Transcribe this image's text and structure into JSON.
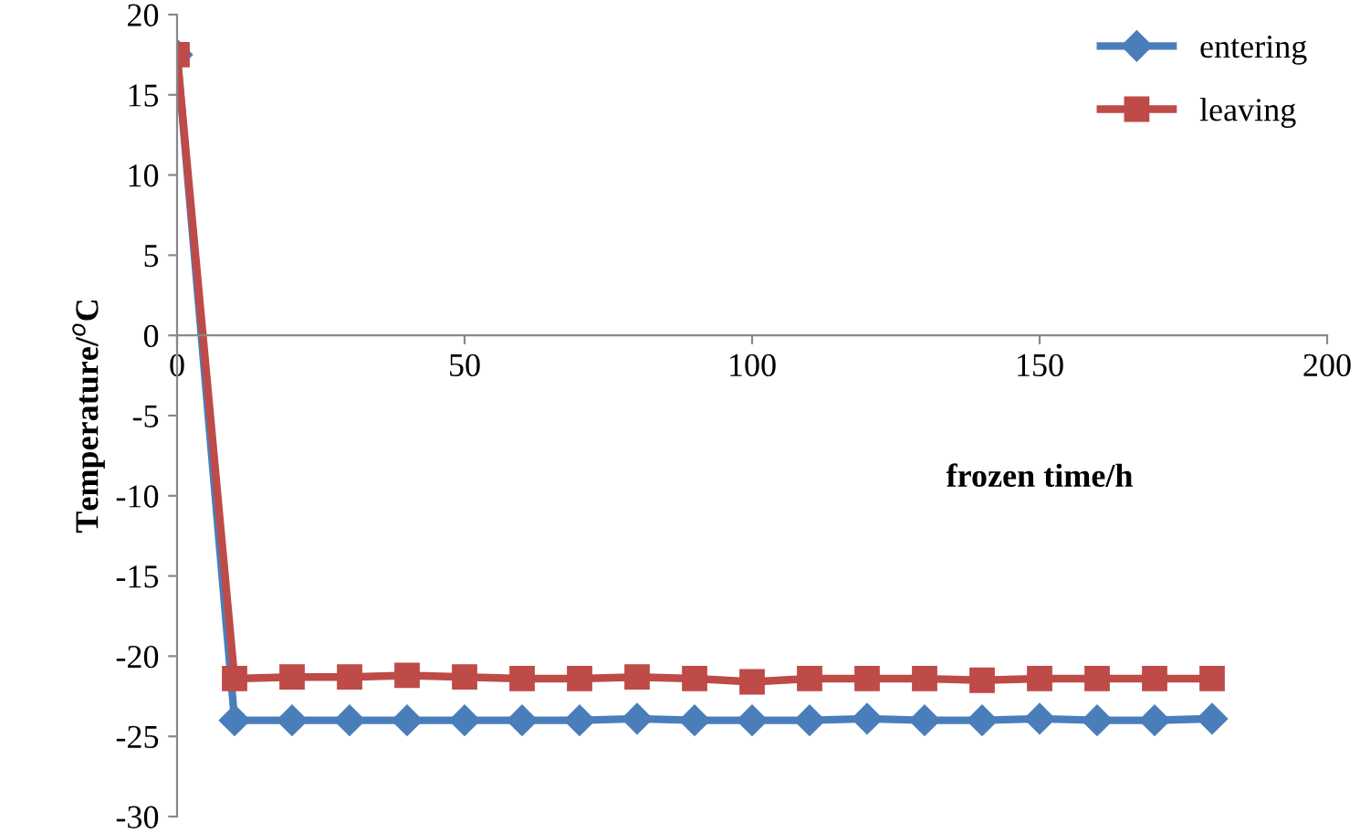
{
  "chart_data": {
    "type": "line",
    "xlabel": "frozen time/h",
    "ylabel": "Temperature/$^{o}$C",
    "x": [
      0,
      10,
      20,
      30,
      40,
      50,
      60,
      70,
      80,
      90,
      100,
      110,
      120,
      130,
      140,
      150,
      160,
      170,
      180
    ],
    "series": [
      {
        "name": "entering",
        "color": "#4a7ebb",
        "marker": "diamond",
        "values": [
          17.5,
          -24,
          -24,
          -24,
          -24,
          -24,
          -24,
          -24,
          -23.9,
          -24,
          -24,
          -24,
          -23.9,
          -24,
          -24,
          -23.9,
          -24,
          -24,
          -23.9
        ]
      },
      {
        "name": "leaving",
        "color": "#be4b48",
        "marker": "square",
        "values": [
          17.5,
          -21.4,
          -21.3,
          -21.3,
          -21.2,
          -21.3,
          -21.4,
          -21.4,
          -21.3,
          -21.4,
          -21.6,
          -21.4,
          -21.4,
          -21.4,
          -21.5,
          -21.4,
          -21.4,
          -21.4,
          -21.4
        ]
      }
    ],
    "xlim": [
      0,
      200
    ],
    "xticks": [
      0,
      50,
      100,
      150,
      200
    ],
    "ylim": [
      -30,
      20
    ],
    "yticks": [
      -30,
      -25,
      -20,
      -15,
      -10,
      -5,
      0,
      5,
      10,
      15,
      20
    ],
    "grid": false,
    "legend": "top right",
    "line_style": "solid"
  }
}
